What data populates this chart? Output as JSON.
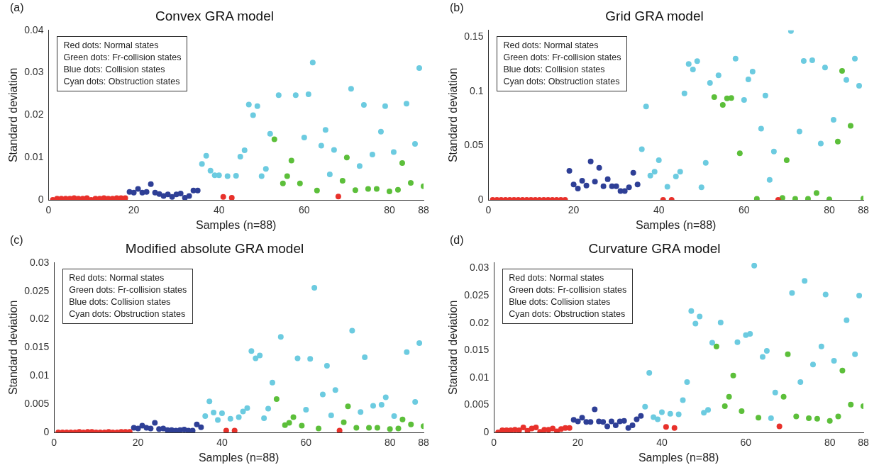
{
  "chart_data": [
    {
      "type": "scatter",
      "title": "Convex GRA model",
      "xlabel": "Samples (n=88)",
      "ylabel": "Standard deviation",
      "xlim": [
        0,
        88
      ],
      "xticks": [
        0,
        20,
        40,
        60,
        80,
        88
      ],
      "ylim": [
        0,
        0.04
      ],
      "yticks": [
        0,
        0.01,
        0.02,
        0.03,
        0.04
      ],
      "grid": false,
      "legend": false,
      "marker": "circle",
      "annotations": [
        "(a)",
        "Red dots: Normal states",
        "Green dots: Fr-collision states",
        "Blue dots: Collision states",
        "Cyan dots: Obstruction states"
      ],
      "series": [
        {
          "color": "#e8312b",
          "x": [
            1,
            2,
            3,
            4,
            5,
            6,
            7,
            8,
            9,
            10,
            11,
            12,
            13,
            14,
            15,
            16,
            17,
            18,
            41,
            43,
            68
          ],
          "values": [
            0,
            0.0003,
            0.0003,
            0.0003,
            0.0003,
            0.0004,
            0.0003,
            0.0003,
            0.0004,
            0,
            0.0003,
            0.0003,
            0.0004,
            0.0003,
            0.0003,
            0.0004,
            0.0004,
            0.0004,
            0.0007,
            0.0005,
            0.0008
          ]
        },
        {
          "color": "#2e3f96",
          "x": [
            19,
            20,
            21,
            22,
            23,
            24,
            25,
            26,
            27,
            28,
            29,
            30,
            31,
            32,
            33,
            34,
            35
          ],
          "values": [
            0.0019,
            0.0017,
            0.0026,
            0.0017,
            0.0019,
            0.0037,
            0.0017,
            0.0014,
            0.0009,
            0.0013,
            0.0007,
            0.0013,
            0.0015,
            0.0005,
            0.0009,
            0.0022,
            0.0022
          ]
        },
        {
          "color": "#6ccbe0",
          "x": [
            36,
            37,
            38,
            39,
            40,
            42,
            44,
            45,
            46,
            47,
            48,
            49,
            50,
            51,
            52,
            54,
            58,
            60,
            61,
            62,
            64,
            65,
            66,
            67,
            71,
            73,
            74,
            76,
            78,
            79,
            81,
            84,
            86,
            87
          ],
          "values": [
            0.0085,
            0.0104,
            0.0069,
            0.0058,
            0.0058,
            0.0056,
            0.0057,
            0.0102,
            0.0117,
            0.0225,
            0.02,
            0.0221,
            0.0056,
            0.0073,
            0.0156,
            0.0247,
            0.0247,
            0.0147,
            0.0249,
            0.0324,
            0.0128,
            0.0165,
            0.006,
            0.0118,
            0.0262,
            0.008,
            0.0224,
            0.0107,
            0.0161,
            0.0221,
            0.0113,
            0.0227,
            0.0132,
            0.0311
          ]
        },
        {
          "color": "#5cbf3a",
          "x": [
            53,
            55,
            56,
            57,
            59,
            63,
            69,
            70,
            72,
            75,
            77,
            80,
            82,
            83,
            85,
            88
          ],
          "values": [
            0.0143,
            0.0039,
            0.0056,
            0.0093,
            0.0039,
            0.0022,
            0.0045,
            0.01,
            0.0023,
            0.0026,
            0.0026,
            0.002,
            0.0024,
            0.0087,
            0.004,
            0.0032
          ]
        }
      ]
    },
    {
      "type": "scatter",
      "title": "Grid GRA model",
      "xlabel": "Samples (n=88)",
      "ylabel": "Standard deviation",
      "xlim": [
        0,
        88
      ],
      "xticks": [
        0,
        20,
        40,
        60,
        80,
        88
      ],
      "ylim": [
        0,
        0.156
      ],
      "yticks": [
        0,
        0.05,
        0.1,
        0.15
      ],
      "grid": false,
      "legend": false,
      "marker": "circle",
      "annotations": [
        "(b)",
        "Red dots: Normal states",
        "Green dots: Fr-collision states",
        "Blue dots: Collision states",
        "Cyan dots: Obstruction states"
      ],
      "series": [
        {
          "color": "#e8312b",
          "x": [
            1,
            2,
            3,
            4,
            5,
            6,
            7,
            8,
            9,
            10,
            11,
            12,
            13,
            14,
            15,
            16,
            17,
            18,
            41,
            43,
            68
          ],
          "values": [
            0,
            0,
            0,
            0,
            0,
            0,
            0,
            0,
            0,
            0,
            0,
            0,
            0,
            0,
            0,
            0,
            0,
            0,
            0,
            0,
            0
          ]
        },
        {
          "color": "#2e3f96",
          "x": [
            19,
            20,
            21,
            22,
            23,
            24,
            25,
            26,
            27,
            28,
            29,
            30,
            31,
            32,
            33,
            34,
            35
          ],
          "values": [
            0.0268,
            0.0142,
            0.0105,
            0.0176,
            0.0132,
            0.0353,
            0.0168,
            0.0295,
            0.0126,
            0.019,
            0.0126,
            0.0126,
            0.0082,
            0.0082,
            0.0116,
            0.025,
            0.0142
          ]
        },
        {
          "color": "#6ccbe0",
          "x": [
            36,
            37,
            38,
            39,
            40,
            42,
            44,
            45,
            46,
            47,
            48,
            49,
            50,
            51,
            52,
            54,
            58,
            60,
            61,
            62,
            64,
            65,
            66,
            67,
            71,
            73,
            74,
            76,
            78,
            79,
            81,
            84,
            86,
            87
          ],
          "values": [
            0.0466,
            0.086,
            0.0224,
            0.026,
            0.0366,
            0.0121,
            0.0216,
            0.026,
            0.098,
            0.125,
            0.12,
            0.1276,
            0.0116,
            0.034,
            0.1076,
            0.1147,
            0.13,
            0.092,
            0.1108,
            0.118,
            0.0655,
            0.096,
            0.0184,
            0.0445,
            0.1553,
            0.063,
            0.1279,
            0.1284,
            0.0518,
            0.1218,
            0.0737,
            0.1103,
            0.13,
            0.105
          ]
        },
        {
          "color": "#5cbf3a",
          "x": [
            53,
            55,
            56,
            57,
            59,
            63,
            69,
            70,
            72,
            75,
            77,
            80,
            82,
            83,
            85,
            88
          ],
          "values": [
            0.0945,
            0.0874,
            0.0934,
            0.0937,
            0.0429,
            0.001,
            0.0018,
            0.0366,
            0.001,
            0.001,
            0.0063,
            0.0005,
            0.0537,
            0.1187,
            0.0682,
            0.0013
          ]
        }
      ]
    },
    {
      "type": "scatter",
      "title": "Modified absolute GRA model",
      "xlabel": "Samples (n=88)",
      "ylabel": "Standard deviation",
      "xlim": [
        0,
        88
      ],
      "xticks": [
        0,
        20,
        40,
        60,
        80,
        88
      ],
      "ylim": [
        0,
        0.03
      ],
      "yticks": [
        0,
        0.005,
        0.01,
        0.015,
        0.02,
        0.025,
        0.03
      ],
      "grid": false,
      "legend": false,
      "marker": "circle",
      "annotations": [
        "(c)",
        "Red dots: Normal states",
        "Green dots: Fr-collision states",
        "Blue dots: Collision states",
        "Cyan dots: Obstruction states"
      ],
      "series": [
        {
          "color": "#e8312b",
          "x": [
            1,
            2,
            3,
            4,
            5,
            6,
            7,
            8,
            9,
            10,
            11,
            12,
            13,
            14,
            15,
            16,
            17,
            18,
            41,
            43,
            68
          ],
          "values": [
            0,
            0,
            0,
            0,
            0,
            0.0001,
            0,
            0.0001,
            0.0001,
            0,
            0,
            0,
            0.0001,
            0,
            0,
            0.0001,
            0.0001,
            0.0001,
            0.0003,
            0.0003,
            0.0003
          ]
        },
        {
          "color": "#2e3f96",
          "x": [
            19,
            20,
            21,
            22,
            23,
            24,
            25,
            26,
            27,
            28,
            29,
            30,
            31,
            32,
            33,
            34,
            35
          ],
          "values": [
            0.0008,
            0.0007,
            0.0012,
            0.0008,
            0.0007,
            0.0017,
            0.0006,
            0.0007,
            0.0004,
            0.0004,
            0.0003,
            0.0004,
            0.0005,
            0.0003,
            0.0003,
            0.0014,
            0.0009
          ]
        },
        {
          "color": "#6ccbe0",
          "x": [
            36,
            37,
            38,
            39,
            40,
            42,
            44,
            45,
            46,
            47,
            48,
            49,
            50,
            51,
            52,
            54,
            58,
            60,
            61,
            62,
            64,
            65,
            66,
            67,
            71,
            73,
            74,
            76,
            78,
            79,
            81,
            84,
            86,
            87
          ],
          "values": [
            0.0029,
            0.0055,
            0.0035,
            0.0022,
            0.0034,
            0.0024,
            0.0027,
            0.0037,
            0.0043,
            0.0144,
            0.0131,
            0.0136,
            0.0025,
            0.0042,
            0.0088,
            0.0169,
            0.0131,
            0.004,
            0.013,
            0.0256,
            0.0067,
            0.0118,
            0.003,
            0.0075,
            0.018,
            0.0036,
            0.0133,
            0.0047,
            0.0049,
            0.0062,
            0.0029,
            0.0142,
            0.0054,
            0.0158
          ]
        },
        {
          "color": "#5cbf3a",
          "x": [
            53,
            55,
            56,
            57,
            59,
            63,
            69,
            70,
            72,
            75,
            77,
            80,
            82,
            83,
            85,
            88
          ],
          "values": [
            0.0059,
            0.0013,
            0.0017,
            0.0027,
            0.0012,
            0.0007,
            0.0018,
            0.0046,
            0.0008,
            0.0008,
            0.0008,
            0.0006,
            0.0007,
            0.0023,
            0.0014,
            0.0011
          ]
        }
      ]
    },
    {
      "type": "scatter",
      "title": "Curvature GRA model",
      "xlabel": "Samples (n=88)",
      "ylabel": "Standard deviation",
      "xlim": [
        0,
        88
      ],
      "xticks": [
        0,
        20,
        40,
        60,
        80,
        88
      ],
      "ylim": [
        0,
        0.031
      ],
      "yticks": [
        0,
        0.005,
        0.01,
        0.015,
        0.02,
        0.025,
        0.03
      ],
      "grid": false,
      "legend": false,
      "marker": "circle",
      "annotations": [
        "(d)",
        "Red dots: Normal states",
        "Green dots: Fr-collision states",
        "Blue dots: Collision states",
        "Cyan dots: Obstruction states"
      ],
      "series": [
        {
          "color": "#e8312b",
          "x": [
            1,
            2,
            3,
            4,
            5,
            6,
            7,
            8,
            9,
            10,
            11,
            12,
            13,
            14,
            15,
            16,
            17,
            18,
            41,
            43,
            68
          ],
          "values": [
            0,
            0.0004,
            0.0004,
            0.0004,
            0.0005,
            0.0004,
            0.0009,
            0.0003,
            0.0007,
            0.0009,
            0.0001,
            0.0005,
            0.0005,
            0.0007,
            0.0002,
            0.0006,
            0.0008,
            0.0008,
            0.001,
            0.0008,
            0.0011
          ]
        },
        {
          "color": "#2e3f96",
          "x": [
            19,
            20,
            21,
            22,
            23,
            24,
            25,
            26,
            27,
            28,
            29,
            30,
            31,
            32,
            33,
            34,
            35
          ],
          "values": [
            0.0023,
            0.002,
            0.0027,
            0.0019,
            0.0019,
            0.0042,
            0.002,
            0.0019,
            0.0011,
            0.002,
            0.0013,
            0.002,
            0.0021,
            0.0008,
            0.0013,
            0.0024,
            0.003
          ]
        },
        {
          "color": "#6ccbe0",
          "x": [
            36,
            37,
            38,
            39,
            40,
            42,
            44,
            45,
            46,
            47,
            48,
            49,
            50,
            51,
            52,
            54,
            58,
            60,
            61,
            62,
            64,
            65,
            66,
            67,
            71,
            73,
            74,
            76,
            78,
            79,
            81,
            84,
            86,
            87
          ],
          "values": [
            0.0047,
            0.0109,
            0.0028,
            0.0024,
            0.0037,
            0.0034,
            0.0033,
            0.0059,
            0.0092,
            0.0222,
            0.0199,
            0.0212,
            0.0036,
            0.0041,
            0.0164,
            0.0201,
            0.0165,
            0.0178,
            0.018,
            0.0305,
            0.0138,
            0.0149,
            0.0026,
            0.0073,
            0.0255,
            0.0092,
            0.0277,
            0.0124,
            0.0157,
            0.0252,
            0.0131,
            0.0205,
            0.0143,
            0.025
          ]
        },
        {
          "color": "#5cbf3a",
          "x": [
            53,
            55,
            56,
            57,
            59,
            63,
            69,
            70,
            72,
            75,
            77,
            80,
            82,
            83,
            85,
            88
          ],
          "values": [
            0.0157,
            0.0048,
            0.0065,
            0.0104,
            0.0039,
            0.0027,
            0.0065,
            0.0143,
            0.0029,
            0.0026,
            0.0025,
            0.0021,
            0.0029,
            0.0113,
            0.0051,
            0.0048
          ]
        }
      ]
    }
  ]
}
